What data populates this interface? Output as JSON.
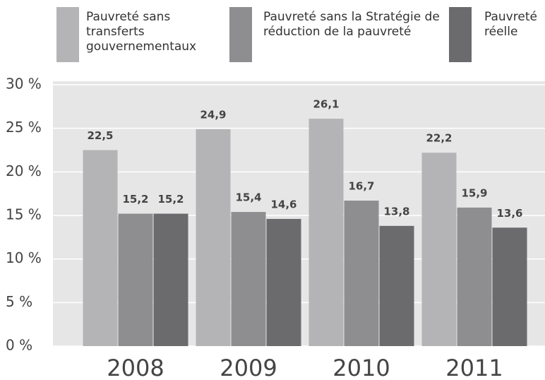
{
  "chart_data": {
    "type": "bar",
    "categories": [
      "2008",
      "2009",
      "2010",
      "2011"
    ],
    "series": [
      {
        "name": "Pauvreté sans transferts gouvernementaux",
        "color": "#b4b4b6",
        "values": [
          22.5,
          24.9,
          26.1,
          22.2
        ],
        "value_labels": [
          "22,5",
          "24,9",
          "26,1",
          "22,2"
        ]
      },
      {
        "name": "Pauvreté sans la Stratégie de réduction de la pauvreté",
        "color": "#8e8e91",
        "values": [
          15.2,
          15.4,
          16.7,
          15.9
        ],
        "value_labels": [
          "15,2",
          "15,4",
          "16,7",
          "15,9"
        ]
      },
      {
        "name": "Pauvreté réelle",
        "color": "#6b6b6e",
        "values": [
          15.2,
          14.6,
          13.8,
          13.6
        ],
        "value_labels": [
          "15,2",
          "14,6",
          "13,8",
          "13,6"
        ]
      }
    ],
    "ylim": [
      0,
      30
    ],
    "yticks": [
      {
        "value": 0,
        "label": "0 %"
      },
      {
        "value": 5,
        "label": "5 %"
      },
      {
        "value": 10,
        "label": "10 %"
      },
      {
        "value": 15,
        "label": "15 %"
      },
      {
        "value": 20,
        "label": "20 %"
      },
      {
        "value": 25,
        "label": "25 %"
      },
      {
        "value": 30,
        "label": "30 %"
      }
    ],
    "grid": true
  }
}
